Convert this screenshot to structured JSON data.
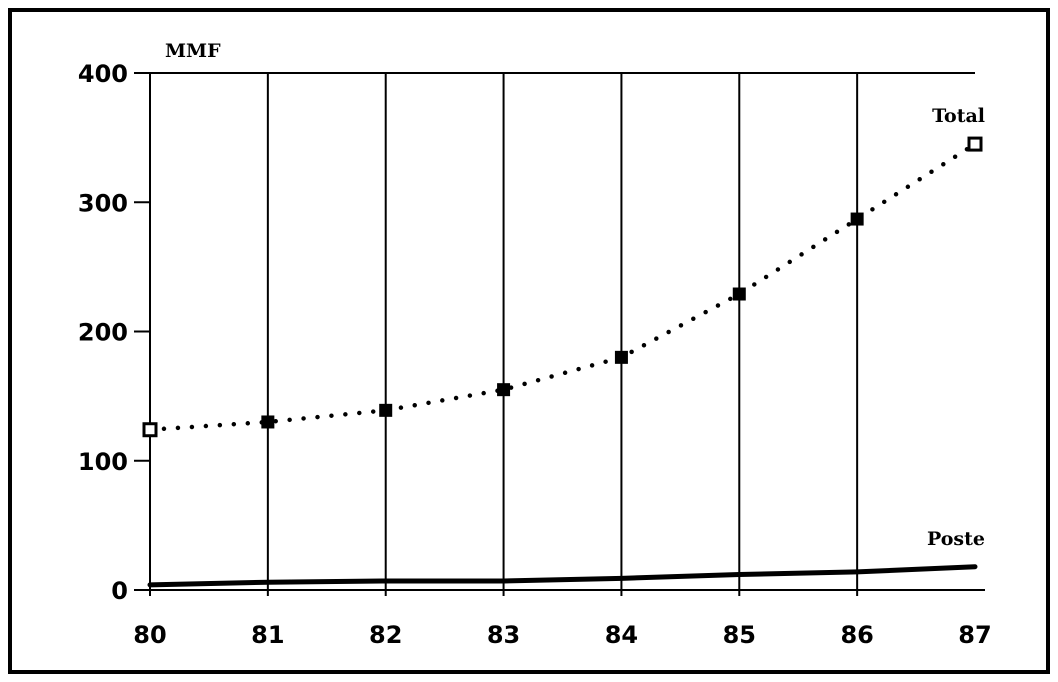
{
  "chart_data": {
    "type": "line",
    "ylabel": "MMF",
    "x": [
      "80",
      "81",
      "82",
      "83",
      "84",
      "85",
      "86",
      "87"
    ],
    "ylim": [
      0,
      400
    ],
    "yticks": [
      0,
      100,
      200,
      300,
      400
    ],
    "grid": "vertical lines at each x tick",
    "series": [
      {
        "name": "Total",
        "style": "dotted",
        "marker": "square",
        "values": [
          124,
          130,
          139,
          155,
          180,
          229,
          287,
          345
        ]
      },
      {
        "name": "Poste",
        "style": "solid-thick",
        "marker": "none",
        "values": [
          4,
          6,
          7,
          7,
          9,
          12,
          14,
          18
        ]
      }
    ]
  },
  "colors": {
    "line": "#000000",
    "background": "#ffffff"
  }
}
